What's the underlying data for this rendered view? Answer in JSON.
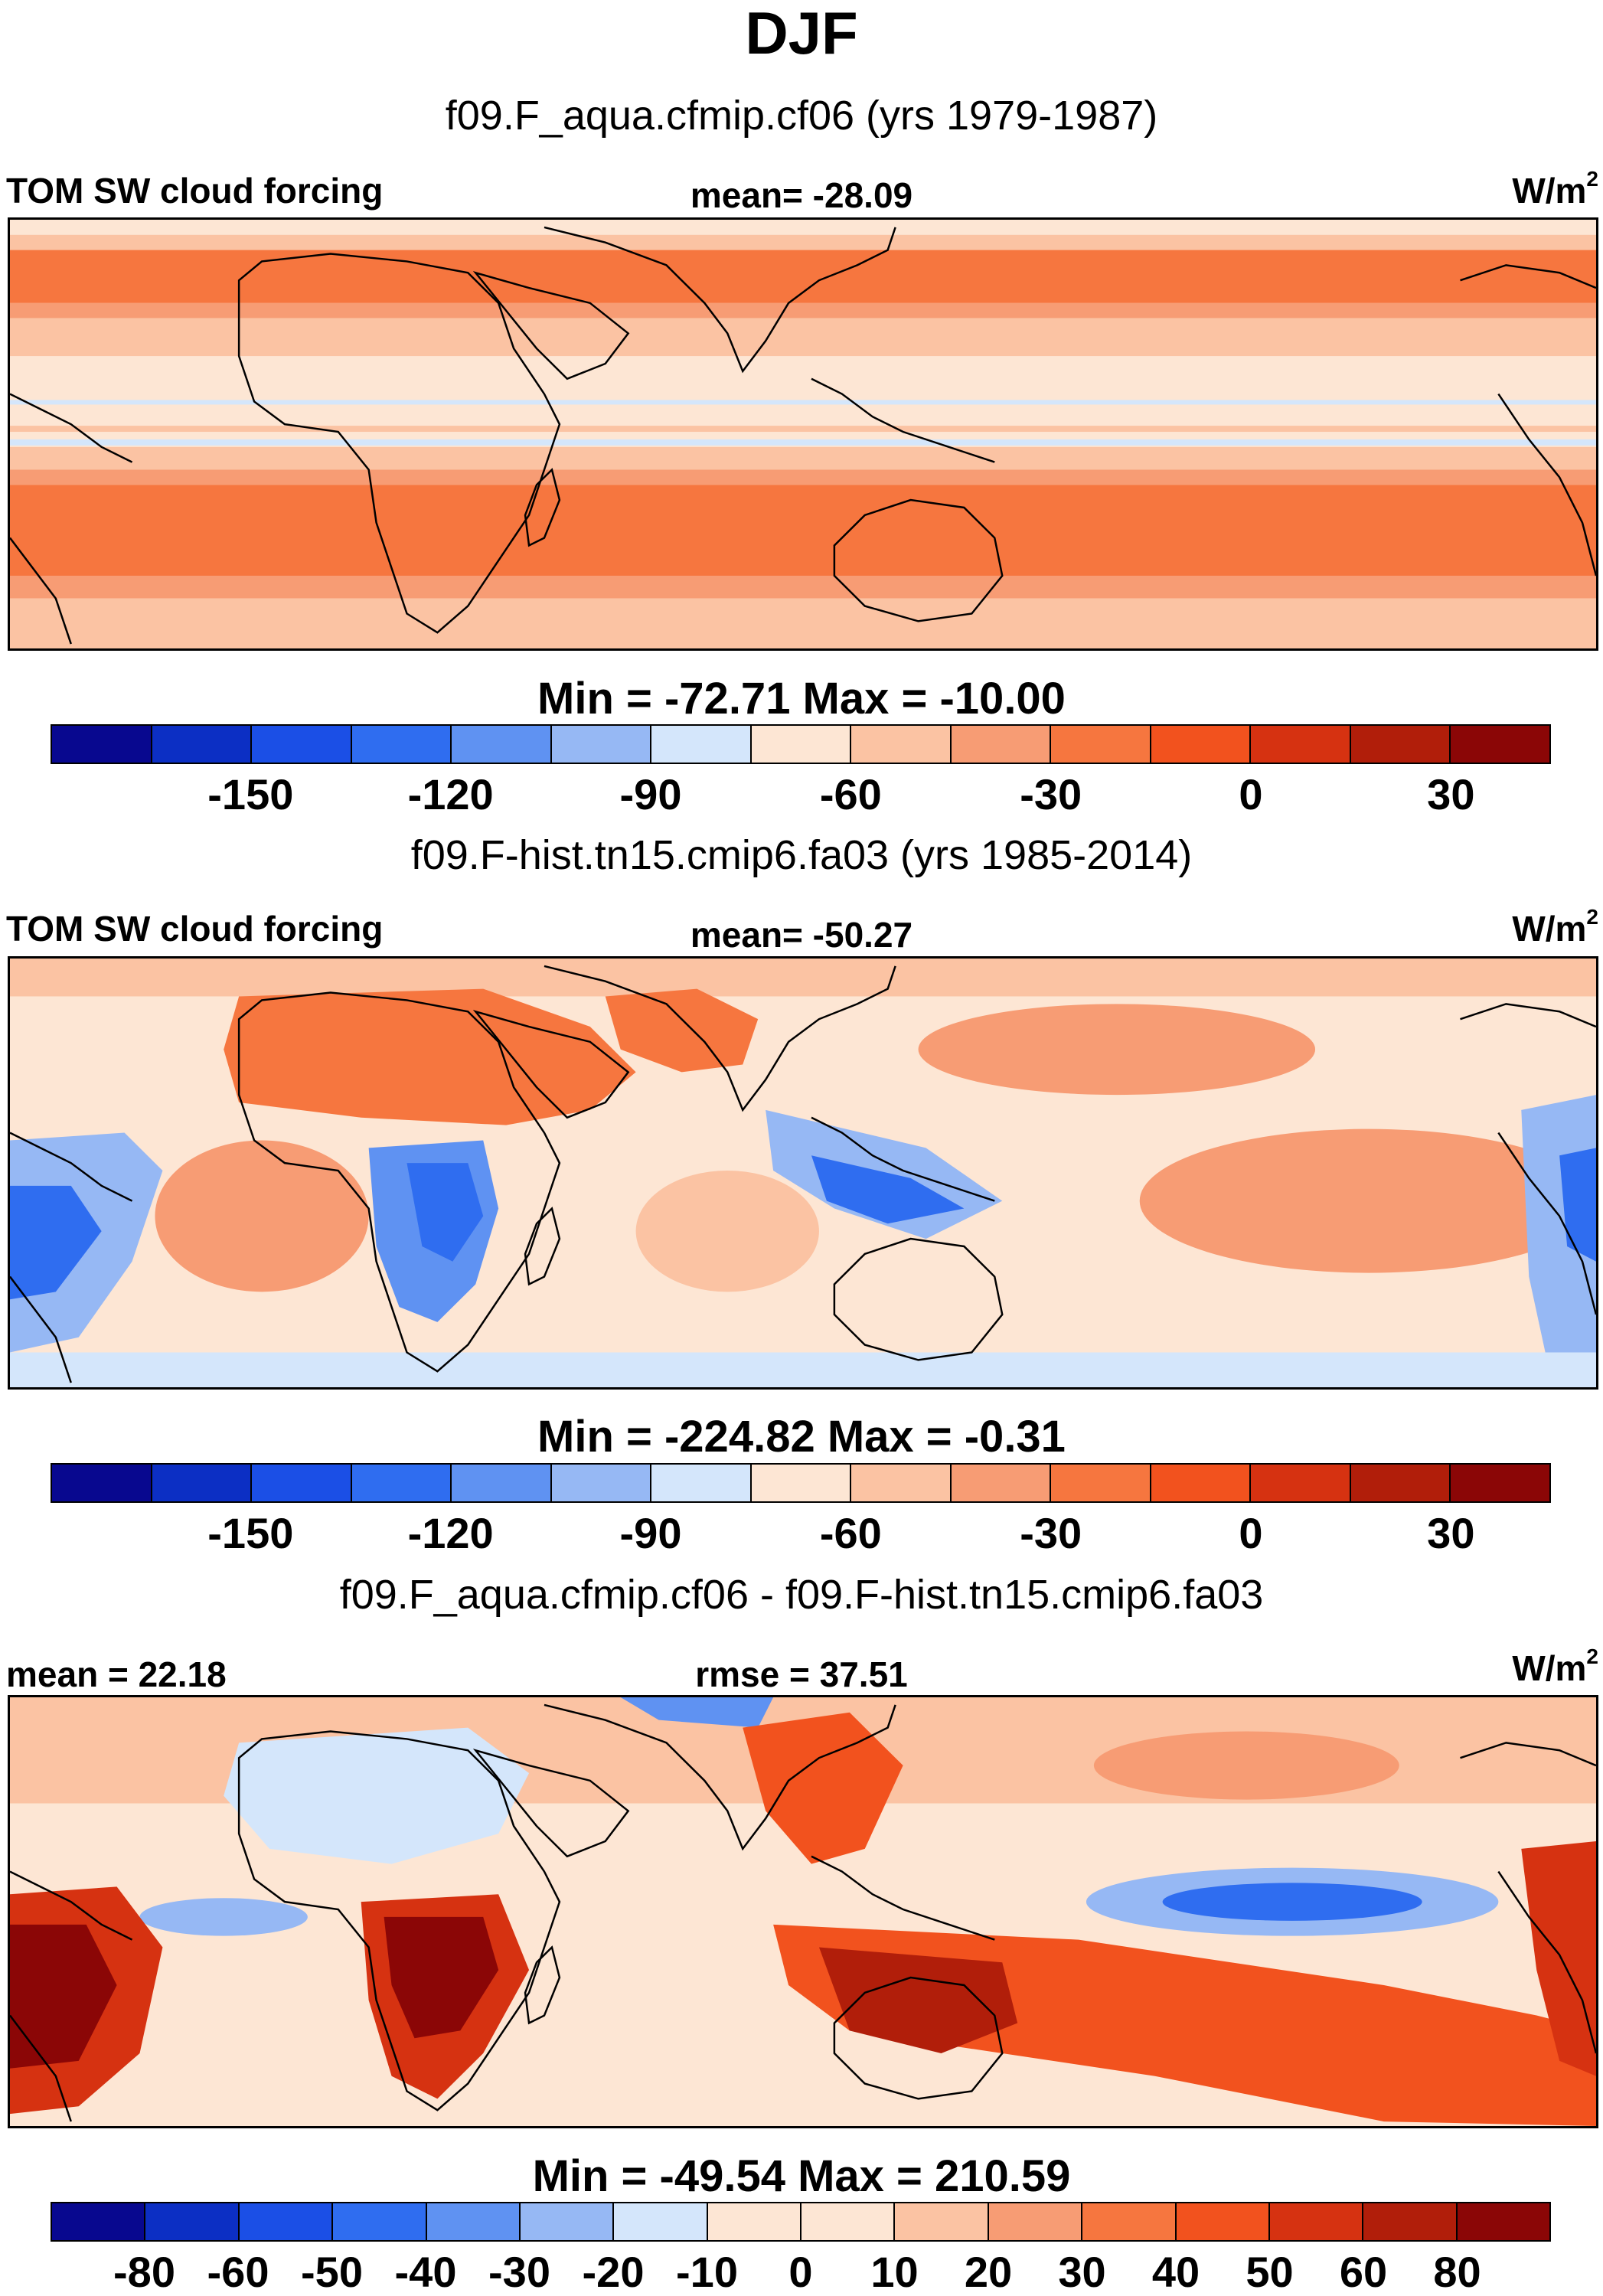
{
  "title": "DJF",
  "units_base": "W/m",
  "units_exp": "2",
  "palette": {
    "levels13": [
      "#08088f",
      "#0c2fc4",
      "#1b4fe6",
      "#2f6df0",
      "#5f92f2",
      "#96b8f4",
      "#d4e6fb",
      "#fde6d4",
      "#fbc3a3",
      "#f79c74",
      "#f6763f",
      "#f2521e",
      "#d63211",
      "#b11e0a",
      "#8b0606"
    ],
    "ocean_neutral": "#fde6d4",
    "coast": "#000000"
  },
  "chart_data": [
    {
      "type": "heatmap",
      "case": "f09.F_aqua.cfmip.cf06 (yrs 1979-1987)",
      "label_left": "TOM SW cloud forcing",
      "label_center": "mean= -28.09",
      "min_max": "Min = -72.71 Max = -10.00",
      "min": -72.71,
      "max": -10.0,
      "mean": -28.09,
      "colorbar_ticks": [
        "-150",
        "-120",
        "-90",
        "-60",
        "-30",
        "0",
        "30"
      ],
      "colorbar_levels": [
        -180,
        -165,
        -150,
        -135,
        -120,
        -105,
        -90,
        -75,
        -60,
        -45,
        -30,
        -15,
        0,
        15,
        30,
        45
      ]
    },
    {
      "type": "heatmap",
      "case": "f09.F-hist.tn15.cmip6.fa03 (yrs 1985-2014)",
      "label_left": "TOM SW cloud forcing",
      "label_center": "mean= -50.27",
      "min_max": "Min = -224.82 Max =  -0.31",
      "min": -224.82,
      "max": -0.31,
      "mean": -50.27,
      "colorbar_ticks": [
        "-150",
        "-120",
        "-90",
        "-60",
        "-30",
        "0",
        "30"
      ],
      "colorbar_levels": [
        -180,
        -165,
        -150,
        -135,
        -120,
        -105,
        -90,
        -75,
        -60,
        -45,
        -30,
        -15,
        0,
        15,
        30,
        45
      ]
    },
    {
      "type": "heatmap",
      "case": "f09.F_aqua.cfmip.cf06 - f09.F-hist.tn15.cmip6.fa03",
      "label_left": "mean =  22.18",
      "label_center": "rmse =  37.51",
      "min_max": "Min = -49.54 Max = 210.59",
      "min": -49.54,
      "max": 210.59,
      "mean": 22.18,
      "rmse": 37.51,
      "colorbar_ticks": [
        "-80",
        "-60",
        "-50",
        "-40",
        "-30",
        "-20",
        "-10",
        "0",
        "10",
        "20",
        "30",
        "40",
        "50",
        "60",
        "80"
      ],
      "colorbar_levels": [
        -100,
        -80,
        -60,
        -50,
        -40,
        -30,
        -20,
        -10,
        0,
        10,
        20,
        30,
        40,
        50,
        60,
        80,
        100
      ]
    }
  ]
}
